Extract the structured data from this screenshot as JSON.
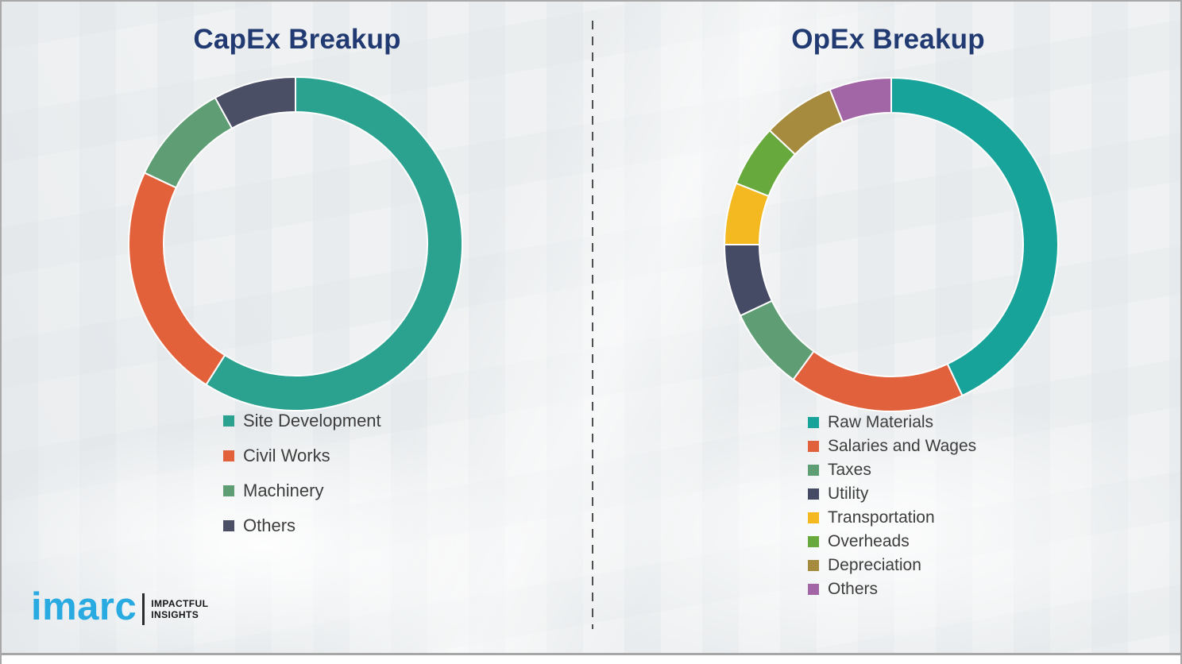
{
  "theme": {
    "title_color": "#213a72",
    "legend_text_color": "#3d3d3d",
    "background_color": "#eff1f2",
    "segment_gap_color": "#ffffff"
  },
  "logo": {
    "brand": "imarc",
    "brand_color": "#29abe2",
    "tagline_line1": "IMPACTFUL",
    "tagline_line2": "INSIGHTS"
  },
  "chart_data": [
    {
      "type": "pie",
      "donut": true,
      "title": "CapEx Breakup",
      "categories": [
        "Site Development",
        "Civil Works",
        "Machinery",
        "Others"
      ],
      "values": [
        59,
        23,
        10,
        8
      ],
      "colors": [
        "#2ba28f",
        "#e2613b",
        "#5f9e74",
        "#4a4f66"
      ],
      "start_angle_deg": 0,
      "direction": "clockwise",
      "legend_position": "below"
    },
    {
      "type": "pie",
      "donut": true,
      "title": "OpEx Breakup",
      "categories": [
        "Raw Materials",
        "Salaries and Wages",
        "Taxes",
        "Utility",
        "Transportation",
        "Overheads",
        "Depreciation",
        "Others"
      ],
      "values": [
        43,
        17,
        8,
        7,
        6,
        6,
        7,
        6
      ],
      "colors": [
        "#18a39a",
        "#e1613c",
        "#5f9e74",
        "#454b64",
        "#f4b821",
        "#67a93c",
        "#a68b3e",
        "#a265a6"
      ],
      "start_angle_deg": 0,
      "direction": "clockwise",
      "legend_position": "below"
    }
  ]
}
